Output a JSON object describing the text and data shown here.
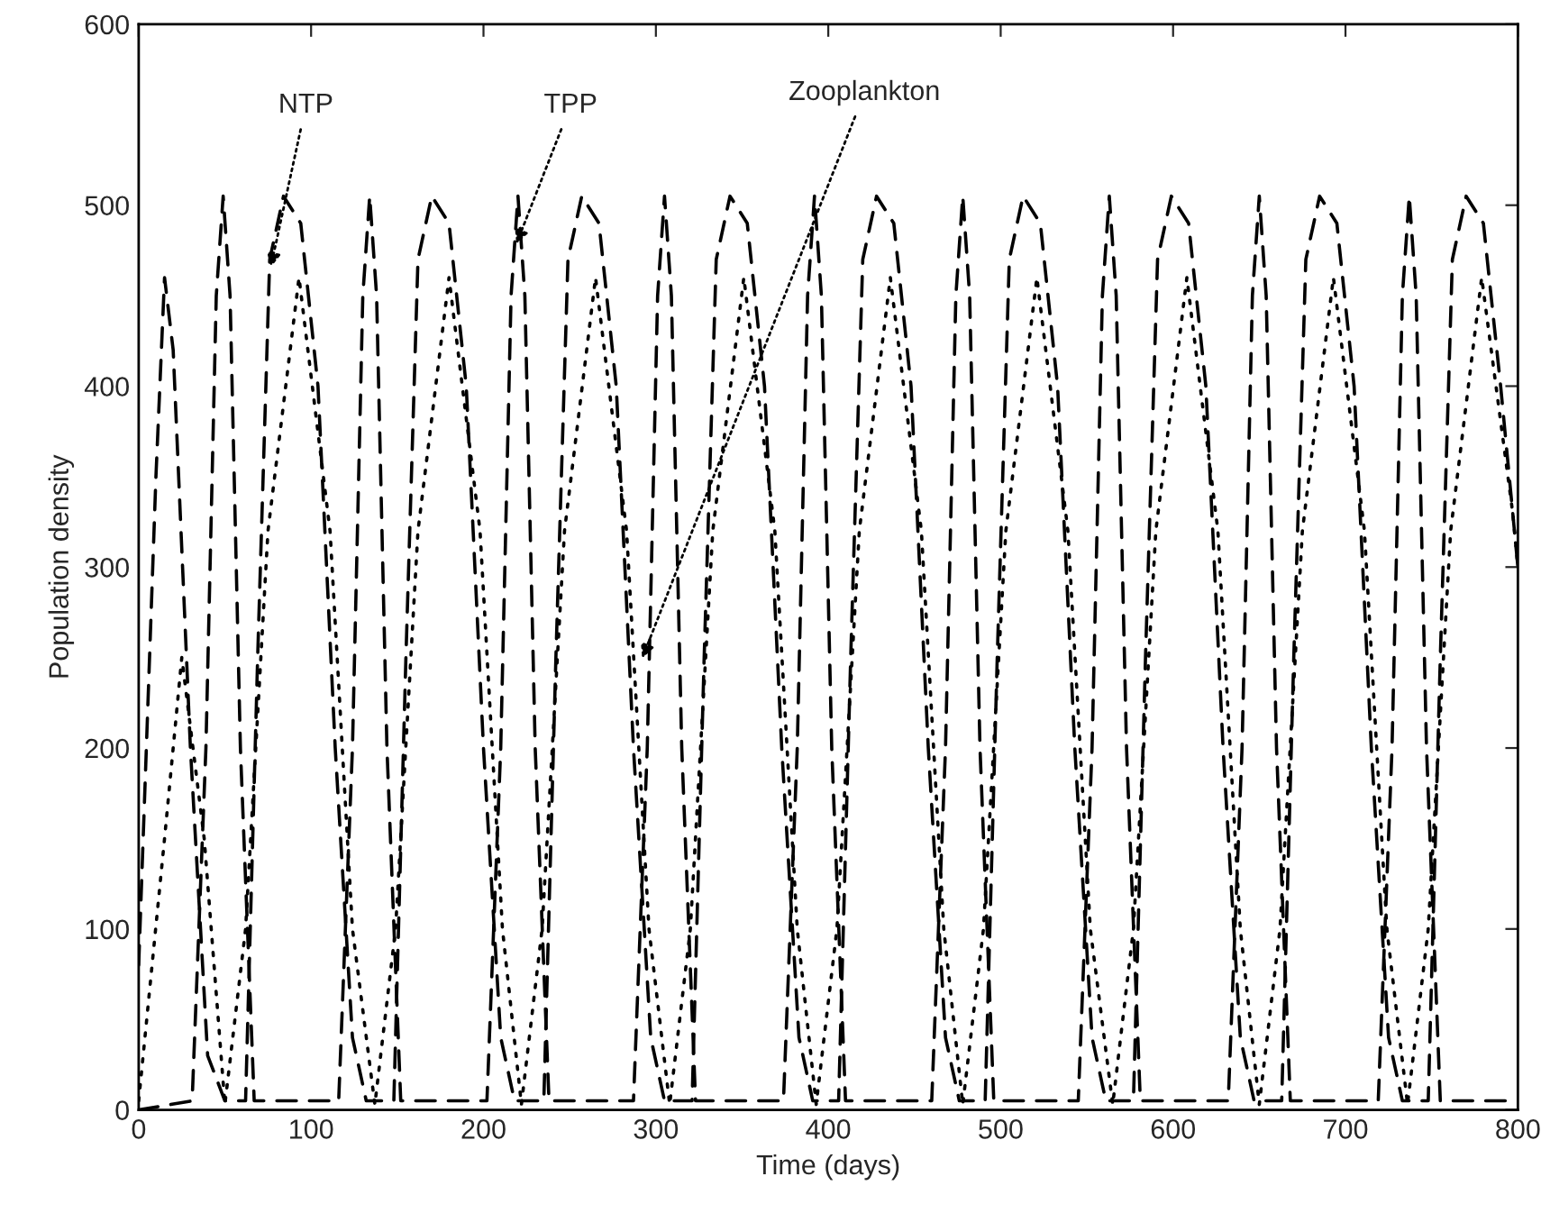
{
  "chart_data": {
    "type": "line",
    "xlabel": "Time (days)",
    "ylabel": "Population density",
    "xlim": [
      0,
      800
    ],
    "xticks": [
      0,
      100,
      200,
      300,
      400,
      500,
      600,
      700,
      800
    ],
    "ylim": [
      0,
      600
    ],
    "yticks": [
      0,
      100,
      200,
      300,
      400,
      500,
      600
    ],
    "grid": false,
    "legend": false,
    "marker": "none",
    "annotations": [
      {
        "text": "NTP",
        "x": 76,
        "y": 463
      },
      {
        "text": "TPP",
        "x": 218,
        "y": 476
      },
      {
        "text": "Zooplankton",
        "x": 291,
        "y": 247
      }
    ],
    "series": [
      {
        "color": "#000000",
        "line_style": "dashed",
        "x": [
          0,
          10,
          15,
          20,
          30,
          40,
          50,
          62,
          69,
          76,
          84,
          94,
          104,
          114,
          124,
          132,
          148,
          155,
          162,
          170,
          180,
          190,
          200,
          210,
          218,
          235,
          242,
          249,
          257,
          267,
          277,
          287,
          297,
          305,
          321,
          328,
          335,
          343,
          353,
          363,
          373,
          383,
          391,
          406,
          413,
          420,
          428,
          438,
          448,
          458,
          468,
          476,
          491,
          498,
          505,
          513,
          523,
          533,
          543,
          553,
          561,
          577,
          584,
          591,
          599,
          609,
          619,
          629,
          639,
          647,
          663,
          670,
          677,
          685,
          695,
          705,
          715,
          725,
          733,
          748,
          755,
          762,
          770,
          780,
          790,
          800
        ],
        "values": [
          80,
          350,
          460,
          420,
          200,
          30,
          5,
          5,
          250,
          470,
          505,
          490,
          400,
          200,
          40,
          5,
          5,
          250,
          470,
          505,
          490,
          400,
          200,
          40,
          5,
          5,
          250,
          470,
          505,
          490,
          400,
          200,
          40,
          5,
          5,
          250,
          470,
          505,
          490,
          400,
          200,
          40,
          5,
          5,
          250,
          470,
          505,
          490,
          400,
          200,
          40,
          5,
          5,
          250,
          470,
          505,
          490,
          400,
          200,
          40,
          5,
          5,
          250,
          470,
          505,
          490,
          400,
          200,
          40,
          5,
          5,
          250,
          470,
          505,
          490,
          400,
          200,
          40,
          5,
          5,
          250,
          470,
          505,
          490,
          400,
          300
        ]
      },
      {
        "color": "#000000",
        "line_style": "dashed",
        "x": [
          0,
          31,
          39,
          45,
          49,
          53,
          59,
          67,
          116,
          124,
          130,
          134,
          138,
          144,
          152,
          202,
          210,
          216,
          220,
          224,
          230,
          238,
          287,
          295,
          301,
          305,
          309,
          315,
          323,
          374,
          382,
          388,
          392,
          396,
          402,
          410,
          460,
          468,
          474,
          478,
          482,
          488,
          496,
          545,
          553,
          559,
          563,
          567,
          573,
          581,
          632,
          640,
          646,
          650,
          654,
          660,
          668,
          719,
          727,
          733,
          737,
          741,
          747,
          755,
          800
        ],
        "values": [
          0,
          5,
          200,
          450,
          505,
          450,
          200,
          5,
          5,
          200,
          450,
          505,
          450,
          200,
          5,
          5,
          200,
          450,
          505,
          450,
          200,
          5,
          5,
          200,
          450,
          505,
          450,
          200,
          5,
          5,
          200,
          450,
          505,
          450,
          200,
          5,
          5,
          200,
          450,
          505,
          450,
          200,
          5,
          5,
          200,
          450,
          505,
          450,
          200,
          5,
          5,
          200,
          450,
          505,
          450,
          200,
          5,
          5,
          200,
          450,
          505,
          450,
          200,
          5,
          5
        ]
      },
      {
        "color": "#000000",
        "line_style": "dotted",
        "x": [
          0,
          15,
          25,
          38,
          50,
          62,
          75,
          93,
          111,
          124,
          137,
          149,
          162,
          180,
          198,
          211,
          222,
          234,
          247,
          265,
          283,
          296,
          308,
          320,
          333,
          351,
          369,
          382,
          393,
          405,
          418,
          436,
          454,
          467,
          478,
          490,
          503,
          521,
          539,
          552,
          565,
          577,
          590,
          608,
          626,
          639,
          650,
          662,
          675,
          693,
          711,
          724,
          736,
          748,
          761,
          779,
          797,
          800
        ],
        "values": [
          5,
          150,
          250,
          150,
          3,
          100,
          320,
          460,
          320,
          100,
          3,
          100,
          320,
          460,
          320,
          100,
          3,
          100,
          320,
          460,
          320,
          100,
          3,
          100,
          320,
          460,
          320,
          100,
          3,
          100,
          320,
          460,
          320,
          100,
          3,
          100,
          320,
          460,
          320,
          100,
          3,
          100,
          320,
          460,
          320,
          100,
          3,
          100,
          320,
          460,
          320,
          100,
          3,
          100,
          320,
          460,
          330,
          300
        ]
      }
    ]
  }
}
